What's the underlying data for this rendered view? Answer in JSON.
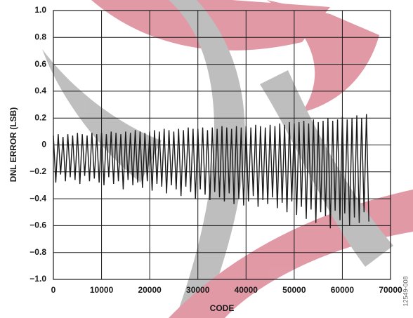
{
  "chart_data": {
    "type": "line",
    "xlabel": "CODE",
    "ylabel": "DNL ERROR (LSB)",
    "figure_id": "12549-008",
    "xlim": [
      0,
      70000
    ],
    "ylim": [
      -1.0,
      1.0
    ],
    "xticks": [
      0,
      10000,
      20000,
      30000,
      40000,
      50000,
      60000,
      70000
    ],
    "yticks": [
      {
        "value": -1.0,
        "label": "−1.0"
      },
      {
        "value": -0.8,
        "label": "−0.8"
      },
      {
        "value": -0.6,
        "label": "−0.6"
      },
      {
        "value": -0.4,
        "label": "−0.4"
      },
      {
        "value": -0.2,
        "label": "−0.2"
      },
      0,
      0.2,
      0.4,
      0.6,
      0.8,
      {
        "value": 1.0,
        "label": "1.0"
      }
    ],
    "grid": true,
    "x": [
      0,
      500,
      1000,
      1500,
      2000,
      2500,
      3000,
      3500,
      4000,
      4500,
      5000,
      5500,
      6000,
      6500,
      7000,
      7500,
      8000,
      8500,
      9000,
      9500,
      10000,
      10500,
      11000,
      11500,
      12000,
      12500,
      13000,
      13500,
      14000,
      14500,
      15000,
      15500,
      16000,
      16500,
      17000,
      17500,
      18000,
      18500,
      19000,
      19500,
      20000,
      20500,
      21000,
      21500,
      22000,
      22500,
      23000,
      23500,
      24000,
      24500,
      25000,
      25500,
      26000,
      26500,
      27000,
      27500,
      28000,
      28500,
      29000,
      29500,
      30000,
      30500,
      31000,
      31500,
      32000,
      32500,
      33000,
      33500,
      34000,
      34500,
      35000,
      35500,
      36000,
      36500,
      37000,
      37500,
      38000,
      38500,
      39000,
      39500,
      40000,
      40500,
      41000,
      41500,
      42000,
      42500,
      43000,
      43500,
      44000,
      44500,
      45000,
      45500,
      46000,
      46500,
      47000,
      47500,
      48000,
      48500,
      49000,
      49500,
      50000,
      50500,
      51000,
      51500,
      52000,
      52500,
      53000,
      53500,
      54000,
      54500,
      55000,
      55500,
      56000,
      56500,
      57000,
      57500,
      58000,
      58500,
      59000,
      59500,
      60000,
      60500,
      61000,
      61500,
      62000,
      62500,
      63000,
      63500,
      64000,
      64500,
      65000,
      65500
    ],
    "series": [
      {
        "color": "#1a1a1a",
        "values": [
          0.07,
          -0.28,
          0.08,
          -0.22,
          0.06,
          -0.27,
          0.08,
          -0.24,
          0.07,
          -0.26,
          0.09,
          -0.29,
          0.08,
          -0.23,
          0.07,
          -0.27,
          0.09,
          -0.25,
          0.08,
          -0.28,
          0.09,
          -0.3,
          0.08,
          -0.24,
          0.1,
          -0.29,
          0.09,
          -0.27,
          0.08,
          -0.33,
          0.1,
          -0.26,
          0.09,
          -0.3,
          0.11,
          -0.28,
          0.1,
          -0.32,
          0.09,
          -0.27,
          0.1,
          -0.34,
          0.11,
          -0.29,
          0.1,
          -0.31,
          0.12,
          -0.36,
          0.11,
          -0.3,
          0.1,
          -0.33,
          0.12,
          -0.38,
          0.11,
          -0.31,
          0.13,
          -0.35,
          0.12,
          -0.4,
          0.12,
          -0.33,
          0.13,
          -0.37,
          0.11,
          -0.41,
          0.13,
          -0.35,
          0.12,
          -0.39,
          0.14,
          -0.42,
          0.13,
          -0.36,
          0.12,
          -0.44,
          0.14,
          -0.4,
          0.13,
          -0.45,
          0.14,
          -0.42,
          0.13,
          -0.38,
          0.15,
          -0.46,
          0.14,
          -0.41,
          0.13,
          -0.44,
          0.15,
          -0.39,
          0.14,
          -0.47,
          0.16,
          -0.43,
          0.15,
          -0.5,
          0.17,
          -0.42,
          0.16,
          -0.52,
          0.17,
          -0.46,
          0.18,
          -0.55,
          0.16,
          -0.48,
          0.19,
          -0.58,
          0.17,
          -0.5,
          0.18,
          -0.53,
          0.2,
          -0.62,
          0.18,
          -0.49,
          0.19,
          -0.56,
          0.21,
          -0.51,
          0.19,
          -0.6,
          0.2,
          -0.54,
          0.22,
          -0.58,
          0.2,
          -0.5,
          0.23,
          -0.57
        ]
      }
    ]
  }
}
